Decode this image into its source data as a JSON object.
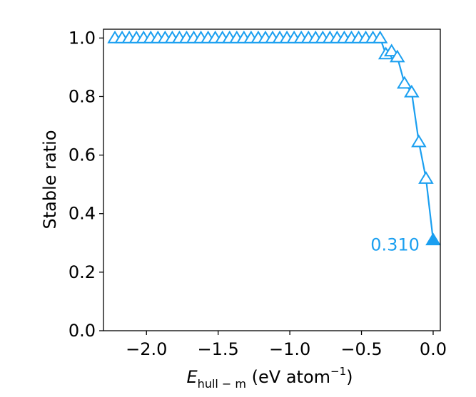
{
  "chart_data": {
    "type": "line",
    "title": "",
    "xlabel_italic": "E",
    "xlabel_subscript": "hull − m",
    "xlabel_units_prefix": " (eV atom",
    "xlabel_units_sup": "−1",
    "xlabel_units_suffix": ")",
    "ylabel": "Stable ratio",
    "xlim": [
      -2.3,
      0.05
    ],
    "ylim": [
      0.0,
      1.03
    ],
    "xticks": [
      -2.0,
      -1.5,
      -1.0,
      -0.5,
      0.0
    ],
    "xtick_labels": [
      "−2.0",
      "−1.5",
      "−1.0",
      "−0.5",
      "0.0"
    ],
    "yticks": [
      0.0,
      0.2,
      0.4,
      0.6,
      0.8,
      1.0
    ],
    "ytick_labels": [
      "0.0",
      "0.2",
      "0.4",
      "0.6",
      "0.8",
      "1.0"
    ],
    "series_color": "#1a9ff0",
    "grid": false,
    "series": [
      {
        "name": "stable ratio",
        "marker": "open-triangle",
        "x": [
          -2.22,
          -2.17,
          -2.12,
          -2.07,
          -2.02,
          -1.97,
          -1.92,
          -1.87,
          -1.82,
          -1.77,
          -1.72,
          -1.67,
          -1.62,
          -1.57,
          -1.52,
          -1.47,
          -1.42,
          -1.37,
          -1.32,
          -1.27,
          -1.22,
          -1.17,
          -1.12,
          -1.07,
          -1.02,
          -0.97,
          -0.92,
          -0.87,
          -0.82,
          -0.77,
          -0.72,
          -0.67,
          -0.62,
          -0.57,
          -0.52,
          -0.47,
          -0.42,
          -0.37,
          -0.33,
          -0.29,
          -0.25,
          -0.2,
          -0.15,
          -0.1,
          -0.05
        ],
        "y": [
          1.0,
          1.0,
          1.0,
          1.0,
          1.0,
          1.0,
          1.0,
          1.0,
          1.0,
          1.0,
          1.0,
          1.0,
          1.0,
          1.0,
          1.0,
          1.0,
          1.0,
          1.0,
          1.0,
          1.0,
          1.0,
          1.0,
          1.0,
          1.0,
          1.0,
          1.0,
          1.0,
          1.0,
          1.0,
          1.0,
          1.0,
          1.0,
          1.0,
          1.0,
          1.0,
          1.0,
          1.0,
          1.0,
          0.945,
          0.955,
          0.935,
          0.845,
          0.815,
          0.645,
          0.52
        ]
      }
    ],
    "endpoint": {
      "x": 0.0,
      "y": 0.31,
      "marker": "filled-triangle"
    },
    "annotation": {
      "text": "0.310",
      "x": 0.0,
      "y": 0.31
    }
  }
}
